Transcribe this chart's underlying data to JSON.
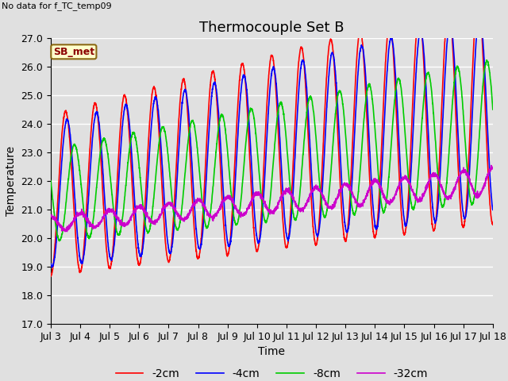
{
  "title": "Thermocouple Set B",
  "subtitle": "No data for f_TC_temp09",
  "ylabel": "Temperature",
  "xlabel": "Time",
  "legend_box_label": "SB_met",
  "ylim": [
    17.0,
    27.0
  ],
  "yticks": [
    17.0,
    18.0,
    19.0,
    20.0,
    21.0,
    22.0,
    23.0,
    24.0,
    25.0,
    26.0,
    27.0
  ],
  "xtick_labels": [
    "Jul 3",
    "Jul 4",
    "Jul 5",
    "Jul 6",
    "Jul 7",
    "Jul 8",
    "Jul 9",
    "Jul 10",
    "Jul 11",
    "Jul 12",
    "Jul 13",
    "Jul 14",
    "Jul 15",
    "Jul 16",
    "Jul 17",
    "Jul 18"
  ],
  "series": [
    {
      "label": "-2cm",
      "color": "#ff0000"
    },
    {
      "label": "-4cm",
      "color": "#0000ff"
    },
    {
      "label": "-8cm",
      "color": "#00cc00"
    },
    {
      "label": "-32cm",
      "color": "#cc00cc"
    }
  ],
  "background_color": "#e0e0e0",
  "plot_bg_color": "#e0e0e0",
  "grid_color": "#ffffff",
  "title_fontsize": 13,
  "axis_label_fontsize": 10,
  "tick_fontsize": 9,
  "legend_fontsize": 10,
  "fig_width": 6.4,
  "fig_height": 4.8,
  "fig_dpi": 100
}
